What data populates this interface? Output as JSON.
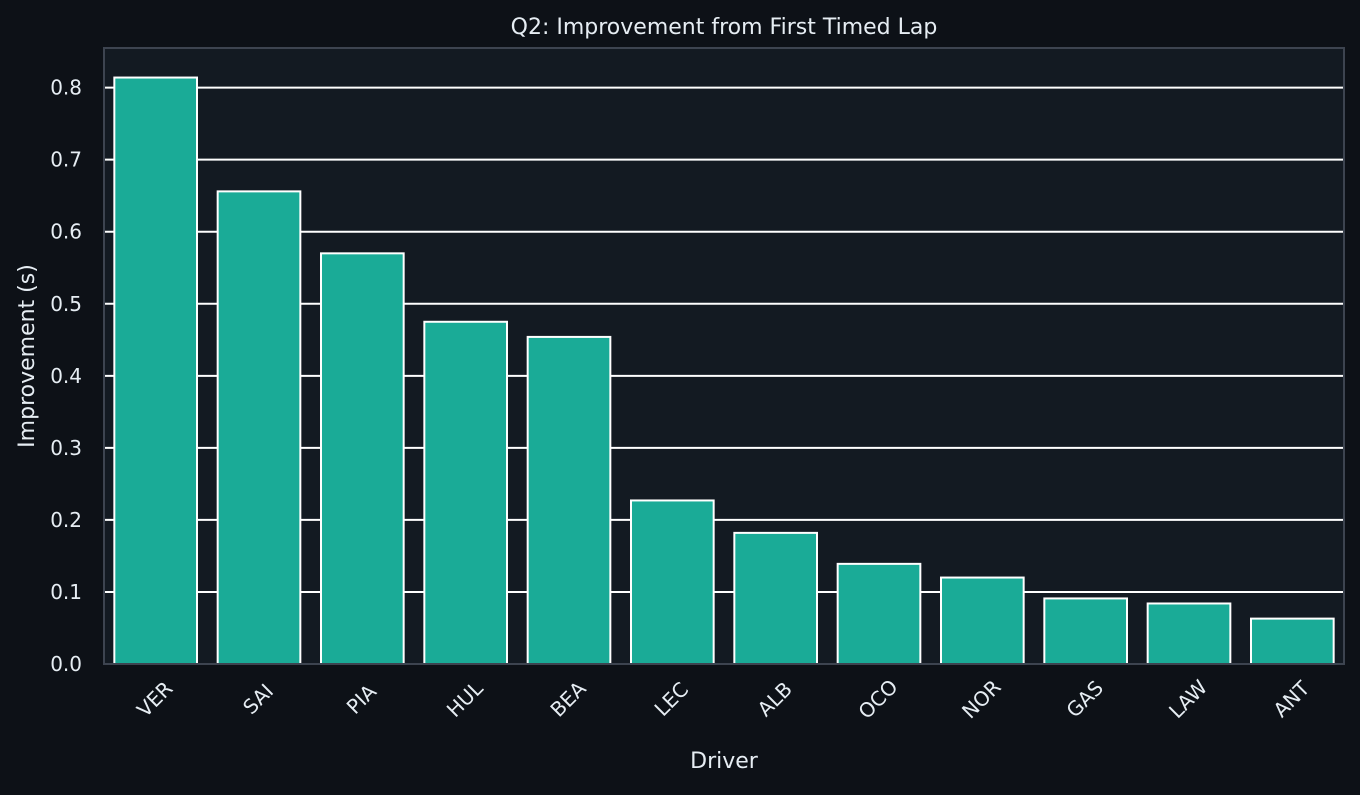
{
  "chart_data": {
    "type": "bar",
    "title": "Q2: Improvement from First Timed Lap",
    "xlabel": "Driver",
    "ylabel": "Improvement (s)",
    "categories": [
      "VER",
      "SAI",
      "PIA",
      "HUL",
      "BEA",
      "LEC",
      "ALB",
      "OCO",
      "NOR",
      "GAS",
      "LAW",
      "ANT"
    ],
    "values": [
      0.814,
      0.656,
      0.57,
      0.475,
      0.454,
      0.227,
      0.182,
      0.139,
      0.12,
      0.091,
      0.084,
      0.063
    ],
    "ylim": [
      0,
      0.855
    ],
    "yticks": [
      0.0,
      0.1,
      0.2,
      0.3,
      0.4,
      0.5,
      0.6,
      0.7,
      0.8
    ],
    "ytick_labels": [
      "0.0",
      "0.1",
      "0.2",
      "0.3",
      "0.4",
      "0.5",
      "0.6",
      "0.7",
      "0.8"
    ],
    "grid": "horizontal",
    "legend": "none"
  },
  "colors": {
    "page_background": "#0d1117",
    "plot_background": "#131a22",
    "bar_fill": "#1aab97",
    "bar_edge": "#ffffff",
    "grid": "#ffffff",
    "axis_frame": "#3d4450",
    "text": "#e6edf3"
  }
}
